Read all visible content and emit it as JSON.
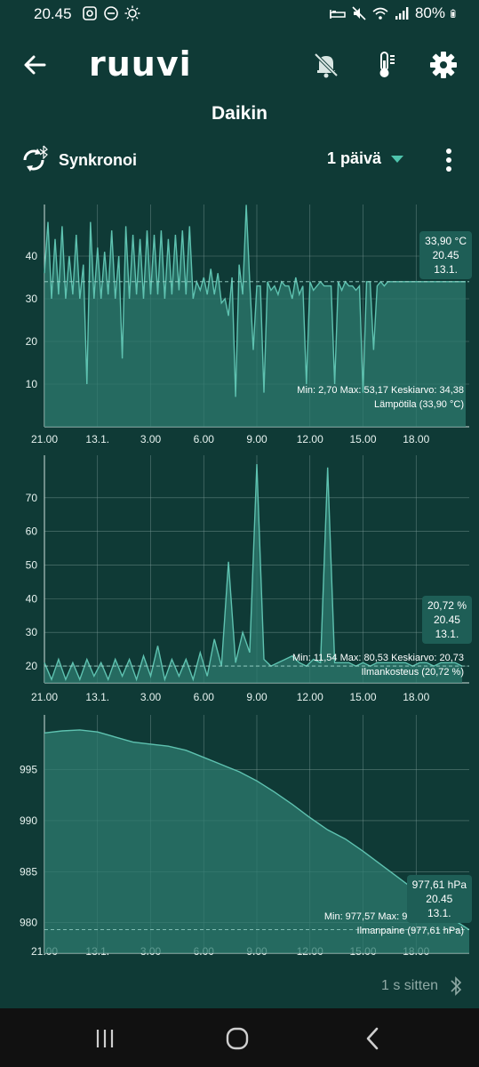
{
  "status_bar": {
    "time": "20.45",
    "battery": "80%",
    "left_icons": [
      "gallery-icon",
      "minus-circle-icon",
      "brightness-icon"
    ],
    "right_icons": [
      "bed-icon",
      "mute-icon",
      "wifi-icon",
      "signal-icon",
      "battery-icon"
    ]
  },
  "header": {
    "logo": "ruuvi",
    "title": "Daikin",
    "icons": [
      "back-arrow-icon",
      "bell-off-icon",
      "thermometer-icon",
      "gear-icon"
    ]
  },
  "toolbar": {
    "sync_label": "Synkronoi",
    "period": "1 päivä",
    "icons": [
      "sync-bluetooth-icon",
      "triangle-down-icon",
      "more-vertical-icon"
    ]
  },
  "colors": {
    "background": "#0f3a36",
    "line": "#5ec2b0",
    "fill": "#2d7b6f",
    "grid": "#7a9a96"
  },
  "charts": [
    {
      "stats": "Min: 2,70 Max: 53,17 Keskiarvo: 34,38",
      "sensor": "Lämpötila (33,90 °C)",
      "badge": {
        "value": "33,90 °C",
        "time": "20.45",
        "date": "13.1."
      }
    },
    {
      "stats": "Min: 11,54 Max: 80,53 Keskiarvo: 20,73",
      "sensor": "Ilmankosteus (20,72 %)",
      "badge": {
        "value": "20,72 %",
        "time": "20.45",
        "date": "13.1."
      }
    },
    {
      "stats": "Min: 977,57 Max: 999,16 Keskia",
      "sensor": "Ilmanpaine (977,61 hPa)",
      "badge": {
        "value": "977,61 hPa",
        "time": "20.45",
        "date": "13.1."
      }
    }
  ],
  "chart_data": [
    {
      "type": "area",
      "series": [
        {
          "x": [
            0,
            0.2,
            0.4,
            0.6,
            0.8,
            1,
            1.2,
            1.4,
            1.6,
            1.8,
            2,
            2.2,
            2.4,
            2.6,
            2.8,
            3,
            3.2,
            3.4,
            3.6,
            3.8,
            4,
            4.2,
            4.4,
            4.6,
            4.8,
            5,
            5.2,
            5.4,
            5.6,
            5.8,
            6,
            6.2,
            6.4,
            6.6,
            6.8,
            7,
            7.2,
            7.4,
            7.6,
            7.8,
            8,
            8.2,
            8.4,
            8.6,
            8.8,
            9,
            9.2,
            9.4,
            9.6,
            9.8,
            10,
            10.2,
            10.4,
            10.6,
            10.8,
            11,
            11.2,
            11.4,
            11.6,
            11.8,
            12,
            12.2,
            12.4,
            12.6,
            12.8,
            13,
            13.2,
            13.4,
            13.6,
            13.8,
            14,
            14.2,
            14.4,
            14.6,
            14.8,
            15,
            15.2,
            15.4,
            15.6,
            15.8,
            16,
            16.2,
            16.4,
            16.6,
            16.8,
            17,
            17.2,
            17.4,
            17.6,
            17.8,
            18,
            18.2,
            18.4,
            18.6,
            18.8,
            19,
            19.2,
            19.4,
            19.6,
            19.8,
            20,
            20.2,
            20.4,
            20.6,
            20.8,
            21,
            21.2,
            21.4,
            21.6,
            21.8,
            22,
            22.2,
            22.4,
            22.6,
            22.8,
            23,
            23.2,
            23.4,
            23.6,
            23.8
          ],
          "values": [
            36,
            48,
            30,
            44,
            31,
            47,
            30,
            40,
            31,
            45,
            30,
            38,
            10,
            48,
            30,
            42,
            30,
            41,
            31,
            46,
            30,
            40,
            16,
            47,
            30,
            45,
            31,
            44,
            30,
            46,
            31,
            45,
            31,
            46,
            30,
            44,
            31,
            45,
            32,
            46,
            31,
            47,
            30,
            34,
            32,
            35,
            31,
            37,
            31,
            36,
            29,
            30,
            26,
            35,
            7,
            38,
            31,
            52,
            34,
            18,
            33,
            33,
            8,
            34,
            32,
            33,
            31,
            34,
            33,
            33,
            30,
            35,
            31,
            33,
            10,
            34,
            32,
            33,
            34,
            33,
            33,
            33,
            10,
            34,
            32,
            34,
            33,
            33,
            32,
            33,
            8,
            34,
            34,
            18,
            33,
            34,
            33,
            34,
            34,
            34,
            34,
            34,
            34,
            34,
            34,
            34,
            34,
            34,
            34,
            34,
            34,
            34,
            34,
            34,
            34,
            34,
            34,
            34,
            34,
            34
          ],
          "name": ""
        }
      ],
      "x_tick_labels": [
        "21.00",
        "13.1.",
        "3.00",
        "6.00",
        "9.00",
        "12.00",
        "15.00",
        "18.00"
      ],
      "y_ticks": [
        10,
        20,
        30,
        40
      ],
      "ylim": [
        0,
        50
      ],
      "grid": true
    },
    {
      "type": "area",
      "series": [
        {
          "x": [
            0,
            0.4,
            0.8,
            1.2,
            1.6,
            2,
            2.4,
            2.8,
            3.2,
            3.6,
            4,
            4.4,
            4.8,
            5.2,
            5.6,
            6,
            6.4,
            6.8,
            7.2,
            7.6,
            8,
            8.4,
            8.8,
            9.2,
            9.6,
            10,
            10.4,
            10.8,
            11.2,
            11.6,
            12,
            12.4,
            12.8,
            13.2,
            13.6,
            14,
            14.4,
            14.8,
            15.2,
            15.6,
            16,
            16.4,
            16.8,
            17.2,
            17.6,
            18,
            18.4,
            18.8,
            19.2,
            19.6,
            20,
            20.4,
            20.8,
            21.2,
            21.6,
            22,
            22.4,
            22.8,
            23.2,
            23.6
          ],
          "values": [
            21,
            16,
            22,
            16,
            21,
            16,
            22,
            17,
            21,
            16,
            22,
            17,
            22,
            16,
            23,
            17,
            26,
            16,
            22,
            17,
            22,
            16,
            24,
            17,
            28,
            20,
            51,
            21,
            30,
            24,
            80,
            22,
            20,
            21,
            22,
            23,
            21,
            20,
            22,
            21,
            79,
            21,
            21,
            21,
            20,
            21,
            20,
            21,
            21,
            21,
            21,
            21,
            20,
            21,
            21,
            20,
            21,
            21,
            21,
            20
          ],
          "name": ""
        }
      ],
      "x_tick_labels": [
        "21.00",
        "13.1.",
        "3.00",
        "6.00",
        "9.00",
        "12.00",
        "15.00",
        "18.00"
      ],
      "y_ticks": [
        20,
        30,
        40,
        50,
        60,
        70
      ],
      "ylim": [
        15,
        80
      ],
      "grid": true
    },
    {
      "type": "area",
      "series": [
        {
          "x": [
            0,
            1,
            2,
            3,
            4,
            5,
            6,
            7,
            8,
            9,
            10,
            11,
            12,
            13,
            14,
            15,
            16,
            17,
            18,
            19,
            20,
            21,
            22,
            23,
            24
          ],
          "values": [
            998.6,
            998.8,
            998.9,
            998.7,
            998.2,
            997.7,
            997.5,
            997.3,
            996.9,
            996.2,
            995.5,
            994.8,
            993.9,
            992.8,
            991.6,
            990.3,
            989.1,
            988.2,
            987.0,
            985.7,
            984.4,
            983.1,
            981.7,
            980.4,
            979.3
          ],
          "name": ""
        }
      ],
      "x_tick_labels": [
        "21.00",
        "13.1.",
        "3.00",
        "6.00",
        "9.00",
        "12.00",
        "15.00",
        "18.00"
      ],
      "y_ticks": [
        980,
        985,
        990,
        995
      ],
      "ylim": [
        977,
        999.5
      ],
      "grid": true
    }
  ],
  "footer": {
    "updated": "1 s sitten",
    "icons": [
      "bluetooth-icon"
    ]
  },
  "nav": {
    "icons": [
      "recent-apps-icon",
      "home-icon",
      "back-nav-icon"
    ]
  }
}
